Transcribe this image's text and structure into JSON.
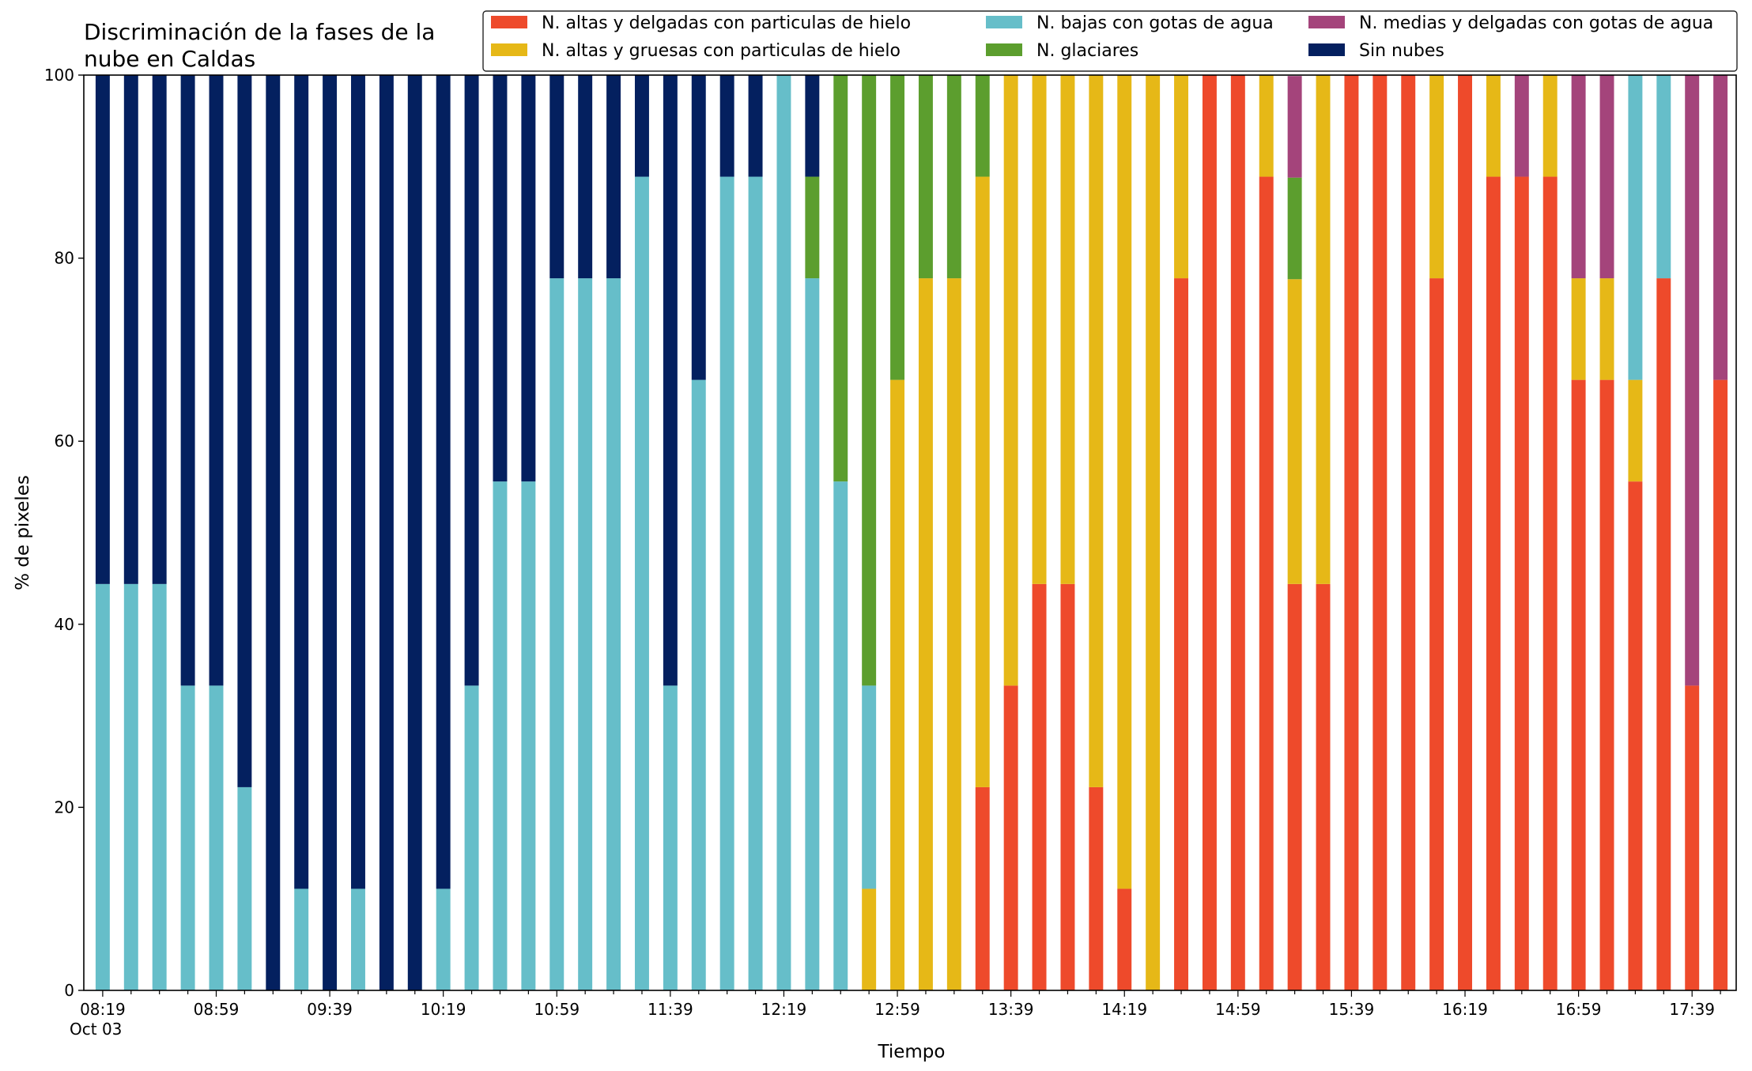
{
  "chart_data": {
    "type": "bar",
    "stacked": true,
    "title_lines": [
      "Discriminación de la fases de la",
      "nube en Caldas"
    ],
    "xlabel": "Tiempo",
    "ylabel": "% de pixeles",
    "ylim": [
      0,
      100
    ],
    "yticks": [
      "0",
      "20",
      "40",
      "60",
      "80",
      "100"
    ],
    "xtick_labels": [
      "08:19",
      "08:59",
      "09:39",
      "10:19",
      "10:59",
      "11:39",
      "12:19",
      "12:59",
      "13:39",
      "14:19",
      "14:59",
      "15:39",
      "16:19",
      "16:59",
      "17:39"
    ],
    "xtick_sublabel": "Oct 03",
    "xtick_every": 4,
    "grid": false,
    "legend_placement": "top",
    "legend_order": [
      0,
      1,
      2,
      3,
      4,
      5
    ],
    "categories": [
      "08:19",
      "08:29",
      "08:39",
      "08:49",
      "08:59",
      "09:09",
      "09:19",
      "09:29",
      "09:39",
      "09:49",
      "09:59",
      "10:09",
      "10:19",
      "10:29",
      "10:39",
      "10:49",
      "10:59",
      "11:09",
      "11:19",
      "11:29",
      "11:39",
      "11:49",
      "11:59",
      "12:09",
      "12:19",
      "12:29",
      "12:39",
      "12:49",
      "12:59",
      "13:09",
      "13:19",
      "13:29",
      "13:39",
      "13:49",
      "13:59",
      "14:09",
      "14:19",
      "14:29",
      "14:39",
      "14:49",
      "14:59",
      "15:09",
      "15:19",
      "15:29",
      "15:39",
      "15:49",
      "15:59",
      "16:09",
      "16:19",
      "16:29",
      "16:39",
      "16:49",
      "16:59",
      "17:09",
      "17:19",
      "17:29",
      "17:39",
      "17:49"
    ],
    "series": [
      {
        "name": "N. altas y delgadas con particulas de hielo",
        "color": "#ee4a2b",
        "values": [
          0,
          0,
          0,
          0,
          0,
          0,
          0,
          0,
          0,
          0,
          0,
          0,
          0,
          0,
          0,
          0,
          0,
          0,
          0,
          0,
          0,
          0,
          0,
          0,
          0,
          0,
          0,
          0,
          0,
          0,
          0,
          22.2,
          33.3,
          44.4,
          44.4,
          22.2,
          11.1,
          0,
          77.8,
          100,
          100,
          88.9,
          44.4,
          44.4,
          100,
          100,
          100,
          77.8,
          100,
          88.9,
          88.9,
          88.9,
          66.7,
          66.7,
          55.6,
          77.8,
          33.3,
          66.7
        ]
      },
      {
        "name": "N. altas y gruesas con particulas de hielo",
        "color": "#e6b817",
        "values": [
          0,
          0,
          0,
          0,
          0,
          0,
          0,
          0,
          0,
          0,
          0,
          0,
          0,
          0,
          0,
          0,
          0,
          0,
          0,
          0,
          0,
          0,
          0,
          0,
          0,
          0,
          0,
          11.1,
          66.7,
          77.8,
          77.8,
          66.7,
          66.7,
          55.6,
          55.6,
          77.8,
          88.9,
          100,
          22.2,
          0,
          0,
          11.1,
          33.3,
          55.6,
          0,
          0,
          0,
          22.2,
          0,
          11.1,
          0,
          11.1,
          11.1,
          11.1,
          11.1,
          0,
          0,
          0
        ]
      },
      {
        "name": "N. bajas con gotas de agua",
        "color": "#66bec9",
        "values": [
          44.4,
          44.4,
          44.4,
          33.3,
          33.3,
          22.2,
          0,
          11.1,
          0,
          11.1,
          0,
          0,
          11.1,
          33.3,
          55.6,
          55.6,
          77.8,
          77.8,
          77.8,
          88.9,
          33.3,
          66.7,
          88.9,
          88.9,
          100,
          77.8,
          55.6,
          22.2,
          0,
          0,
          0,
          0,
          0,
          0,
          0,
          0,
          0,
          0,
          0,
          0,
          0,
          0,
          0,
          0,
          0,
          0,
          0,
          0,
          0,
          0,
          0,
          0,
          0,
          0,
          33.3,
          22.2,
          0,
          0
        ]
      },
      {
        "name": "N. glaciares",
        "color": "#5c9e2e",
        "values": [
          0,
          0,
          0,
          0,
          0,
          0,
          0,
          0,
          0,
          0,
          0,
          0,
          0,
          0,
          0,
          0,
          0,
          0,
          0,
          0,
          0,
          0,
          0,
          0,
          0,
          11.1,
          44.4,
          66.7,
          33.3,
          22.2,
          22.2,
          11.1,
          0,
          0,
          0,
          0,
          0,
          0,
          0,
          0,
          0,
          0,
          11.1,
          0,
          0,
          0,
          0,
          0,
          0,
          0,
          0,
          0,
          0,
          0,
          0,
          0,
          0,
          0
        ]
      },
      {
        "name": "N. medias y delgadas con gotas de agua",
        "color": "#a4447b",
        "values": [
          0,
          0,
          0,
          0,
          0,
          0,
          0,
          0,
          0,
          0,
          0,
          0,
          0,
          0,
          0,
          0,
          0,
          0,
          0,
          0,
          0,
          0,
          0,
          0,
          0,
          0,
          0,
          0,
          0,
          0,
          0,
          0,
          0,
          0,
          0,
          0,
          0,
          0,
          0,
          0,
          0,
          0,
          11.1,
          0,
          0,
          0,
          0,
          0,
          0,
          0,
          11.1,
          0,
          22.2,
          22.2,
          0,
          0,
          66.7,
          33.3
        ]
      },
      {
        "name": "Sin nubes",
        "color": "#04205f",
        "values": [
          55.6,
          55.6,
          55.6,
          66.7,
          66.7,
          77.8,
          100,
          88.9,
          100,
          88.9,
          100,
          100,
          88.9,
          66.7,
          44.4,
          44.4,
          22.2,
          22.2,
          22.2,
          11.1,
          66.7,
          33.3,
          11.1,
          11.1,
          0,
          11.1,
          0,
          0,
          0,
          0,
          0,
          0,
          0,
          0,
          0,
          0,
          0,
          0,
          0,
          0,
          0,
          0,
          0,
          0,
          0,
          0,
          0,
          0,
          0,
          0,
          0,
          0,
          0,
          0,
          0,
          0,
          0,
          0
        ]
      }
    ]
  }
}
